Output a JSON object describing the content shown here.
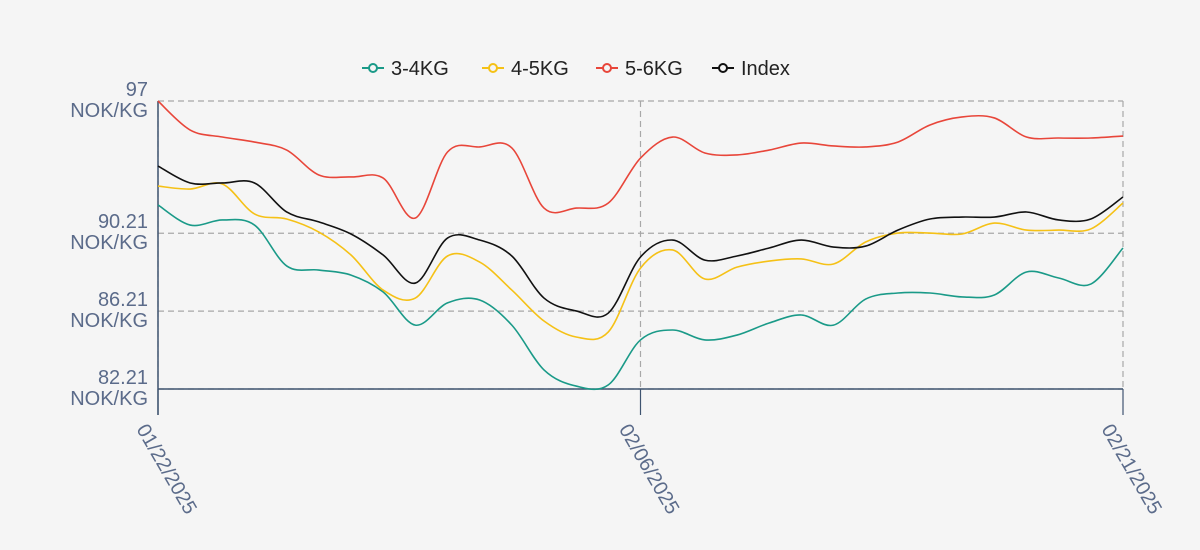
{
  "chart_data": {
    "type": "line",
    "categories": [
      "01/22/2025",
      null,
      null,
      null,
      null,
      null,
      null,
      null,
      null,
      null,
      null,
      null,
      null,
      null,
      null,
      "02/06/2025",
      null,
      null,
      null,
      null,
      null,
      null,
      null,
      null,
      null,
      null,
      null,
      null,
      null,
      null,
      "02/21/2025"
    ],
    "series": [
      {
        "name": "3-4KG",
        "color": "#1a9a88",
        "values": [
          91.66,
          90.63,
          90.89,
          90.63,
          88.53,
          88.32,
          88.06,
          87.19,
          85.49,
          86.63,
          86.78,
          85.49,
          83.19,
          82.36,
          82.42,
          84.73,
          85.24,
          84.73,
          84.98,
          85.6,
          86.01,
          85.49,
          86.83,
          87.14,
          87.14,
          86.94,
          87.04,
          88.22,
          87.91,
          87.6,
          89.45
        ]
      },
      {
        "name": "4-5KG",
        "color": "#f5c116",
        "values": [
          92.63,
          92.48,
          92.74,
          91.2,
          90.94,
          90.27,
          89.09,
          87.29,
          86.88,
          89.04,
          88.73,
          87.29,
          85.7,
          84.88,
          85.14,
          88.42,
          89.35,
          87.86,
          88.47,
          88.78,
          88.89,
          88.63,
          89.76,
          90.22,
          90.22,
          90.17,
          90.73,
          90.37,
          90.37,
          90.43,
          91.76
        ]
      },
      {
        "name": "5-6KG",
        "color": "#e8463a",
        "values": [
          97.0,
          95.51,
          95.15,
          94.89,
          94.48,
          93.2,
          93.1,
          93.04,
          90.99,
          94.38,
          94.64,
          94.59,
          91.5,
          91.5,
          91.76,
          94.07,
          95.15,
          94.33,
          94.23,
          94.48,
          94.84,
          94.69,
          94.64,
          94.89,
          95.77,
          96.18,
          96.13,
          95.15,
          95.1,
          95.1,
          95.2
        ]
      },
      {
        "name": "Index",
        "color": "#111111",
        "values": [
          93.66,
          92.79,
          92.79,
          92.79,
          91.3,
          90.79,
          90.17,
          89.09,
          87.65,
          89.96,
          89.86,
          89.04,
          86.88,
          86.22,
          86.11,
          88.99,
          89.86,
          88.83,
          89.04,
          89.45,
          89.86,
          89.5,
          89.55,
          90.37,
          90.94,
          91.04,
          91.04,
          91.3,
          90.89,
          90.94,
          92.07
        ]
      }
    ],
    "ylim": [
      82.21,
      97
    ],
    "yticks": [
      {
        "value": 82.21,
        "label": "82.21\nNOK/KG"
      },
      {
        "value": 86.21,
        "label": "86.21\nNOK/KG"
      },
      {
        "value": 90.21,
        "label": "90.21\nNOK/KG"
      },
      {
        "value": 97,
        "label": "97\nNOK/KG"
      }
    ],
    "grid": true,
    "legend": "top"
  }
}
